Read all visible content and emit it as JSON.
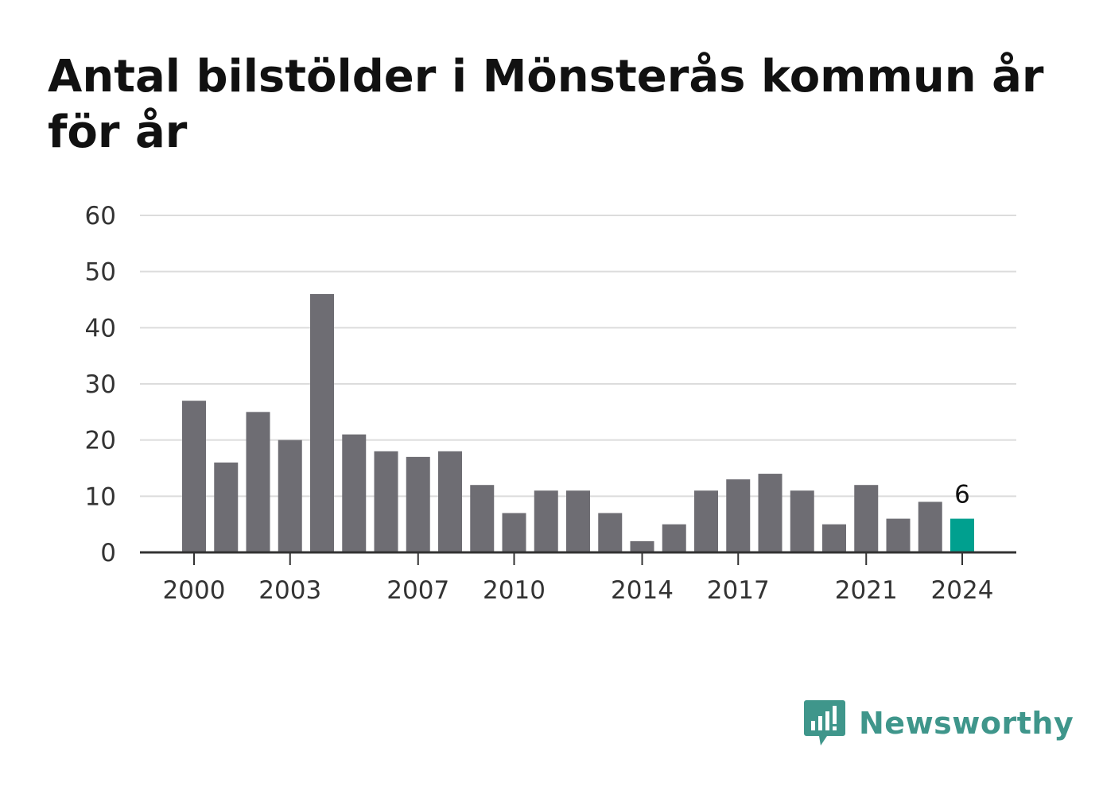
{
  "chart_data": {
    "type": "bar",
    "title": "Antal bilstölder i Mönsterås kommun år för år",
    "xlabel": "",
    "ylabel": "",
    "x": [
      2000,
      2001,
      2002,
      2003,
      2004,
      2005,
      2006,
      2007,
      2008,
      2009,
      2010,
      2011,
      2012,
      2013,
      2014,
      2015,
      2016,
      2017,
      2018,
      2019,
      2020,
      2021,
      2022,
      2023,
      2024
    ],
    "values": [
      27,
      16,
      25,
      20,
      46,
      21,
      18,
      17,
      18,
      12,
      7,
      11,
      11,
      7,
      2,
      5,
      11,
      13,
      14,
      11,
      5,
      12,
      6,
      9,
      6
    ],
    "ylim": [
      0,
      60
    ],
    "yticks": [
      0,
      10,
      20,
      30,
      40,
      50,
      60
    ],
    "xticks": [
      2000,
      2003,
      2007,
      2010,
      2014,
      2017,
      2021,
      2024
    ],
    "grid": true,
    "legend": "none",
    "highlight": {
      "x": 2024,
      "label": "6"
    },
    "colors": {
      "bar": "#6e6d73",
      "highlight": "#00a08f",
      "grid": "#dcdcdc",
      "axis": "#333333"
    }
  },
  "brand": {
    "name": "Newsworthy",
    "icon": "newsworthy-logo-icon",
    "color": "#3f968b"
  }
}
